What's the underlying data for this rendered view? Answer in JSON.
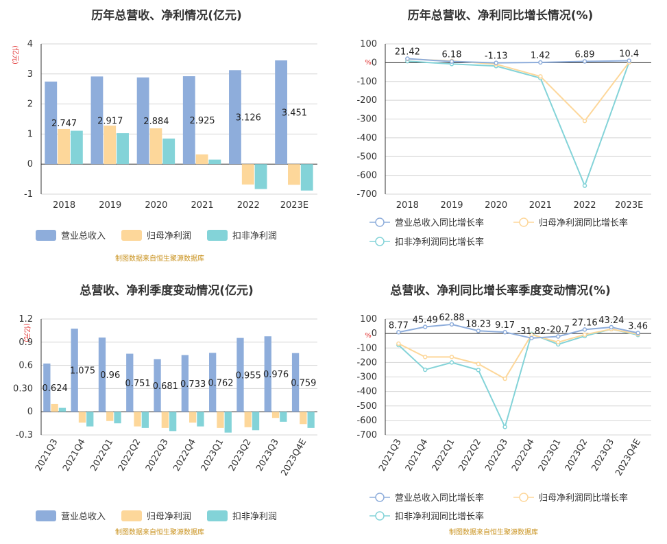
{
  "chart_data": [
    {
      "id": "annual_revenue_profit",
      "type": "bar",
      "title": "历年总营收、净利情况(亿元)",
      "unit": "(亿元)",
      "source": "制图数据来自恒生聚源数据库",
      "categories": [
        "2018",
        "2019",
        "2020",
        "2021",
        "2022",
        "2023E"
      ],
      "ylim": [
        -1,
        4
      ],
      "yticks": [
        "-1",
        "0",
        "1",
        "2",
        "3",
        "4"
      ],
      "series": [
        {
          "name": "营业总收入",
          "color": "#8eaddb",
          "values": [
            2.747,
            2.917,
            2.884,
            2.925,
            3.126,
            3.451
          ],
          "labels": [
            "2.747",
            "2.917",
            "2.884",
            "2.925",
            "3.126",
            "3.451"
          ]
        },
        {
          "name": "归母净利润",
          "color": "#fdd79a",
          "values": [
            1.17,
            1.28,
            1.19,
            0.32,
            -0.68,
            -0.69
          ]
        },
        {
          "name": "扣非净利润",
          "color": "#83d3d8",
          "values": [
            1.11,
            1.03,
            0.85,
            0.15,
            -0.83,
            -0.88
          ]
        }
      ]
    },
    {
      "id": "annual_growth",
      "type": "line",
      "title": "历年总营收、净利同比增长情况(%)",
      "unit": "%",
      "categories": [
        "2018",
        "2019",
        "2020",
        "2021",
        "2022",
        "2023E"
      ],
      "ylim": [
        -700,
        100
      ],
      "yticks": [
        "-700",
        "-600",
        "-500",
        "-400",
        "-300",
        "-200",
        "-100",
        "0",
        "100"
      ],
      "series": [
        {
          "name": "营业总收入同比增长率",
          "color": "#8eaddb",
          "values": [
            21.42,
            6.18,
            -1.13,
            1.42,
            6.89,
            10.4
          ],
          "labels": [
            "21.42",
            "6.18",
            "-1.13",
            "1.42",
            "6.89",
            "10.4"
          ]
        },
        {
          "name": "归母净利润同比增长率",
          "color": "#fdd79a",
          "values": [
            20,
            9,
            -8,
            -73,
            -310,
            2
          ]
        },
        {
          "name": "扣非净利润同比增长率",
          "color": "#83d3d8",
          "values": [
            8,
            -7,
            -18,
            -82,
            -655,
            2
          ]
        }
      ]
    },
    {
      "id": "quarterly_revenue_profit",
      "type": "bar",
      "title": "总营收、净利季度变动情况(亿元)",
      "unit": "(亿元)",
      "source": "制图数据来自恒生聚源数据库",
      "categories": [
        "2021Q3",
        "2021Q4",
        "2022Q1",
        "2022Q2",
        "2022Q3",
        "2022Q4",
        "2023Q1",
        "2023Q2",
        "2023Q3",
        "2023Q4E"
      ],
      "ylim": [
        -0.3,
        1.2
      ],
      "yticks": [
        "-0.3",
        "0",
        "0.30",
        "0.6",
        "0.9",
        "1.2"
      ],
      "series": [
        {
          "name": "营业总收入",
          "color": "#8eaddb",
          "values": [
            0.624,
            1.075,
            0.96,
            0.751,
            0.681,
            0.733,
            0.762,
            0.955,
            0.976,
            0.759
          ],
          "labels": [
            "0.624",
            "1.075",
            "0.96",
            "0.751",
            "0.681",
            "0.733",
            "0.762",
            "0.955",
            "0.976",
            "0.759"
          ]
        },
        {
          "name": "归母净利润",
          "color": "#fdd79a",
          "values": [
            0.1,
            -0.14,
            -0.12,
            -0.19,
            -0.21,
            -0.14,
            -0.21,
            -0.2,
            -0.08,
            -0.16
          ]
        },
        {
          "name": "扣非净利润",
          "color": "#83d3d8",
          "values": [
            0.05,
            -0.19,
            -0.15,
            -0.21,
            -0.25,
            -0.19,
            -0.27,
            -0.24,
            -0.13,
            -0.21
          ]
        }
      ]
    },
    {
      "id": "quarterly_growth",
      "type": "line",
      "title": "总营收、净利同比增长率季度变动情况(%)",
      "unit": "%",
      "source": "制图数据来自恒生聚源数据库",
      "categories": [
        "2021Q3",
        "2021Q4",
        "2022Q1",
        "2022Q2",
        "2022Q3",
        "2022Q4",
        "2023Q1",
        "2023Q2",
        "2023Q3",
        "2023Q4E"
      ],
      "ylim": [
        -700,
        100
      ],
      "yticks": [
        "-700",
        "-600",
        "-500",
        "-400",
        "-300",
        "-200",
        "-100",
        "0",
        "100"
      ],
      "series": [
        {
          "name": "营业总收入同比增长率",
          "color": "#8eaddb",
          "values": [
            8.77,
            45.49,
            62.88,
            18.23,
            9.17,
            -31.82,
            -20.7,
            27.16,
            43.24,
            3.46
          ],
          "labels": [
            "8.77",
            "45.49",
            "62.88",
            "18.23",
            "9.17",
            "-31.82",
            "-20.7",
            "27.16",
            "43.24",
            "3.46"
          ]
        },
        {
          "name": "归母净利润同比增长率",
          "color": "#fdd79a",
          "values": [
            -70,
            -162,
            -162,
            -210,
            -312,
            -8,
            -60,
            -8,
            30,
            -5
          ]
        },
        {
          "name": "扣非净利润同比增长率",
          "color": "#83d3d8",
          "values": [
            -80,
            -250,
            -200,
            -252,
            -645,
            -3,
            -75,
            -18,
            30,
            -10
          ]
        }
      ]
    }
  ]
}
